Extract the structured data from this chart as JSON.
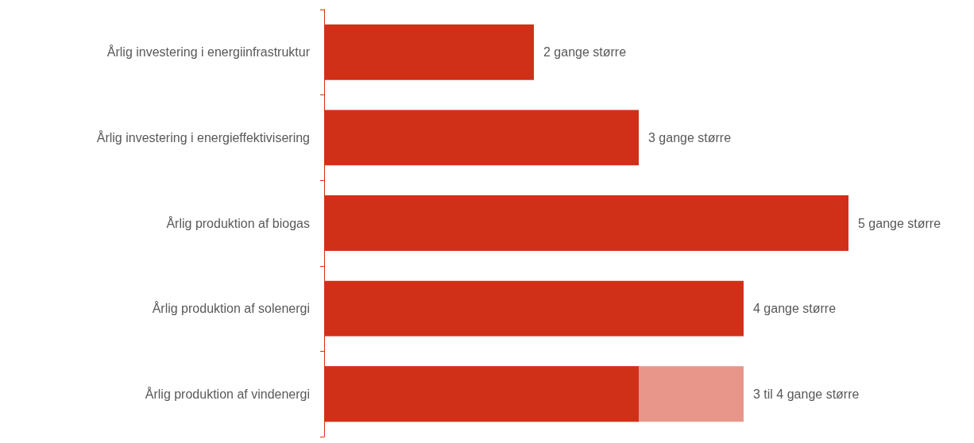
{
  "chart_data": {
    "type": "bar",
    "orientation": "horizontal",
    "tick_labels": "y",
    "xlim": [
      0,
      5
    ],
    "categories": [
      "Årlig investering i energiinfrastruktur",
      "Årlig investering i energieffektivisering",
      "Årlig produktion af biogas",
      "Årlig produktion af solenergi",
      "Årlig produktion af vindenergi"
    ],
    "series": [
      {
        "color": "#e8968a",
        "values": [
          null,
          null,
          null,
          null,
          4
        ],
        "value_labels": [
          null,
          null,
          null,
          null,
          "3 til 4 gange større"
        ]
      },
      {
        "color": "#d13018",
        "values": [
          2,
          3,
          5,
          4,
          3
        ],
        "value_labels": [
          "2 gange større",
          "3 gange større",
          "5 gange større",
          "4 gange større",
          null
        ]
      }
    ]
  }
}
